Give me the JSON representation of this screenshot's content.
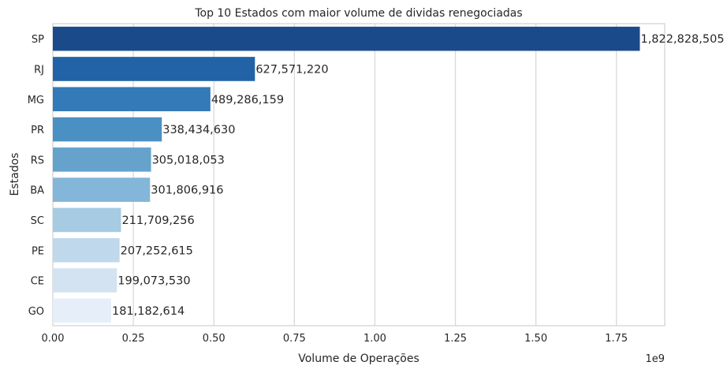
{
  "chart_data": {
    "type": "bar",
    "orientation": "horizontal",
    "title": "Top 10 Estados com maior volume de dividas renegociadas",
    "xlabel": "Volume de Operações",
    "ylabel": "Estados",
    "x_scale_label": "1e9",
    "xlim": [
      0,
      1.9
    ],
    "x_ticks": [
      "0.00",
      "0.25",
      "0.50",
      "0.75",
      "1.00",
      "1.25",
      "1.50",
      "1.75"
    ],
    "grid": "vertical",
    "categories": [
      "SP",
      "RJ",
      "MG",
      "PR",
      "RS",
      "BA",
      "SC",
      "PE",
      "CE",
      "GO"
    ],
    "values": [
      1822828505,
      627571220,
      489286159,
      338434630,
      305018053,
      301806916,
      211709256,
      207252615,
      199073530,
      181182614
    ],
    "value_labels": [
      "1,822,828,505",
      "627,571,220",
      "489,286,159",
      "338,434,630",
      "305,018,053",
      "301,806,916",
      "211,709,256",
      "207,252,615",
      "199,073,530",
      "181,182,614"
    ],
    "colors": [
      "#1a4a8a",
      "#2163a6",
      "#3479b8",
      "#4b90c3",
      "#65a3cd",
      "#83b6d8",
      "#a6cbe3",
      "#c0d8ec",
      "#d4e3f2",
      "#e6eff9"
    ]
  }
}
